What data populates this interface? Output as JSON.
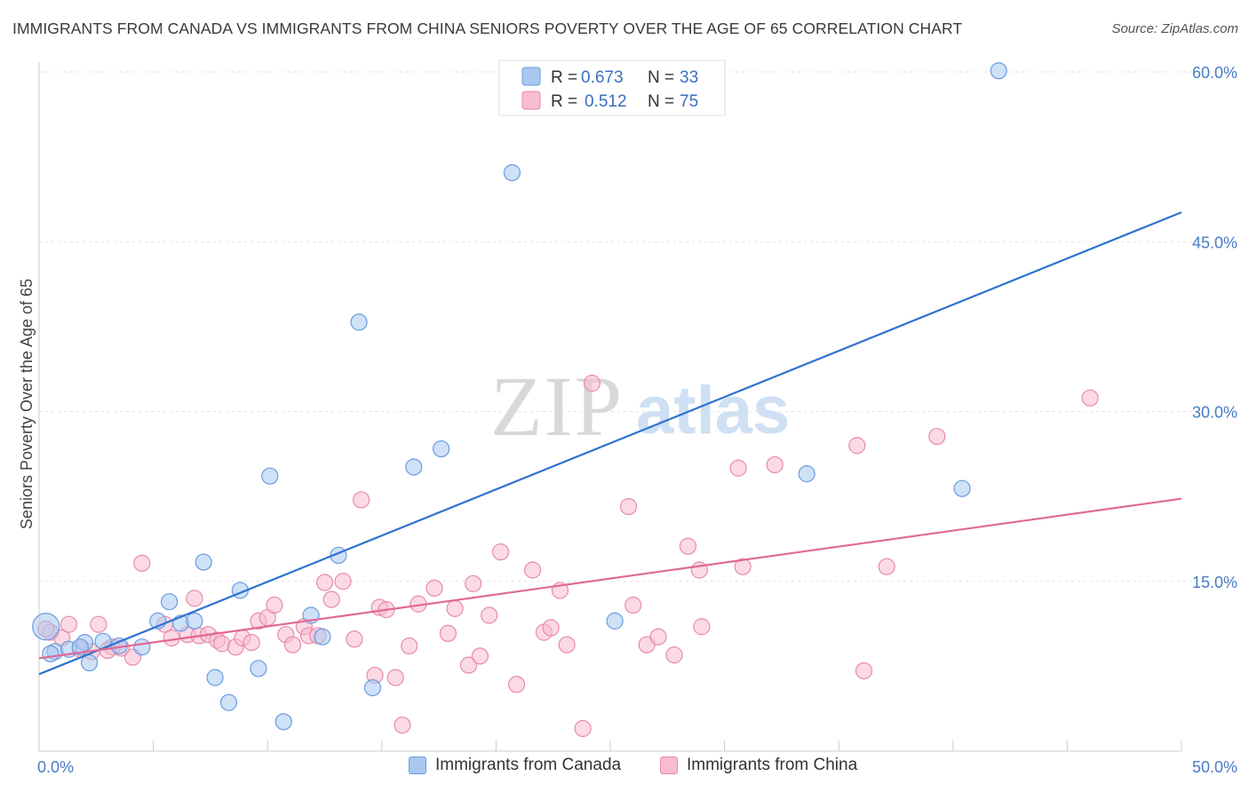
{
  "chart_data": {
    "type": "scatter",
    "title": "IMMIGRANTS FROM CANADA VS IMMIGRANTS FROM CHINA SENIORS POVERTY OVER THE AGE OF 65 CORRELATION CHART",
    "source": "Source: ZipAtlas.com",
    "xlabel": "",
    "ylabel": "Seniors Poverty Over the Age of 65",
    "xlim": [
      0,
      50
    ],
    "ylim": [
      0,
      60
    ],
    "x_tick_labels": [
      "0.0%",
      "50.0%"
    ],
    "y_ticks": [
      15,
      30,
      45,
      60
    ],
    "y_tick_labels": [
      "15.0%",
      "30.0%",
      "45.0%",
      "60.0%"
    ],
    "watermark": "ZIPatlas",
    "legend": {
      "r_label": "R =",
      "n_label": "N =",
      "entries": [
        {
          "name": "Immigrants from Canada",
          "r": "0.673",
          "n": "33",
          "color": "#a8c8f0",
          "stroke": "#6a9be0"
        },
        {
          "name": "Immigrants from China",
          "r": "0.512",
          "n": "75",
          "color": "#f8bcd0",
          "stroke": "#e88aaa"
        }
      ]
    },
    "series": [
      {
        "name": "Immigrants from Canada",
        "color": "#a8c8f0",
        "stroke": "#6a9be0",
        "trend": {
          "color": "#2f72d0",
          "x": [
            0,
            50
          ],
          "y": [
            6.8,
            47.6
          ]
        },
        "points": [
          [
            0.3,
            11.0
          ],
          [
            0.7,
            8.8
          ],
          [
            1.3,
            9.0
          ],
          [
            2.0,
            9.6
          ],
          [
            2.2,
            7.8
          ],
          [
            2.8,
            9.7
          ],
          [
            3.5,
            9.3
          ],
          [
            5.7,
            13.2
          ],
          [
            5.2,
            11.5
          ],
          [
            6.2,
            11.3
          ],
          [
            6.8,
            11.5
          ],
          [
            7.2,
            16.7
          ],
          [
            7.7,
            6.5
          ],
          [
            8.3,
            4.3
          ],
          [
            8.8,
            14.2
          ],
          [
            9.6,
            7.3
          ],
          [
            10.1,
            24.3
          ],
          [
            10.7,
            2.6
          ],
          [
            11.9,
            12.0
          ],
          [
            12.4,
            10.1
          ],
          [
            13.1,
            17.3
          ],
          [
            14.0,
            37.9
          ],
          [
            14.6,
            5.6
          ],
          [
            16.4,
            25.1
          ],
          [
            17.6,
            26.7
          ],
          [
            20.7,
            51.1
          ],
          [
            25.2,
            11.5
          ],
          [
            33.6,
            24.5
          ],
          [
            40.4,
            23.2
          ],
          [
            42.0,
            60.1
          ],
          [
            0.5,
            8.6
          ],
          [
            4.5,
            9.2
          ],
          [
            1.8,
            9.2
          ]
        ]
      },
      {
        "name": "Immigrants from China",
        "color": "#f8bcd0",
        "stroke": "#e88aaa",
        "trend": {
          "color": "#e06895",
          "x": [
            0,
            50
          ],
          "y": [
            8.2,
            22.3
          ]
        },
        "points": [
          [
            0.5,
            10.5
          ],
          [
            1.0,
            10.0
          ],
          [
            1.3,
            11.2
          ],
          [
            1.8,
            9.0
          ],
          [
            2.3,
            8.8
          ],
          [
            2.6,
            11.2
          ],
          [
            3.2,
            9.2
          ],
          [
            3.6,
            9.1
          ],
          [
            4.1,
            8.3
          ],
          [
            4.5,
            16.6
          ],
          [
            5.5,
            11.2
          ],
          [
            5.8,
            10.0
          ],
          [
            6.5,
            10.3
          ],
          [
            6.8,
            13.5
          ],
          [
            7.0,
            10.2
          ],
          [
            7.4,
            10.3
          ],
          [
            7.8,
            9.8
          ],
          [
            8.0,
            9.5
          ],
          [
            8.6,
            9.2
          ],
          [
            8.9,
            10.0
          ],
          [
            9.3,
            9.6
          ],
          [
            9.6,
            11.5
          ],
          [
            10.0,
            11.8
          ],
          [
            10.3,
            12.9
          ],
          [
            10.8,
            10.3
          ],
          [
            11.1,
            9.4
          ],
          [
            11.6,
            11.0
          ],
          [
            11.8,
            10.2
          ],
          [
            12.2,
            10.2
          ],
          [
            12.5,
            14.9
          ],
          [
            12.8,
            13.4
          ],
          [
            13.3,
            15.0
          ],
          [
            13.8,
            9.9
          ],
          [
            14.1,
            22.2
          ],
          [
            14.7,
            6.7
          ],
          [
            14.9,
            12.7
          ],
          [
            15.2,
            12.5
          ],
          [
            15.6,
            6.5
          ],
          [
            15.9,
            2.3
          ],
          [
            16.2,
            9.3
          ],
          [
            16.6,
            13.0
          ],
          [
            17.3,
            14.4
          ],
          [
            17.9,
            10.4
          ],
          [
            18.2,
            12.6
          ],
          [
            18.8,
            7.6
          ],
          [
            19.0,
            14.8
          ],
          [
            19.3,
            8.4
          ],
          [
            19.7,
            12.0
          ],
          [
            20.2,
            17.6
          ],
          [
            20.9,
            5.9
          ],
          [
            21.6,
            16.0
          ],
          [
            22.1,
            10.5
          ],
          [
            22.4,
            10.9
          ],
          [
            22.8,
            14.2
          ],
          [
            23.1,
            9.4
          ],
          [
            23.8,
            2.0
          ],
          [
            24.2,
            32.5
          ],
          [
            25.8,
            21.6
          ],
          [
            26.0,
            12.9
          ],
          [
            26.6,
            9.4
          ],
          [
            27.1,
            10.1
          ],
          [
            27.8,
            8.5
          ],
          [
            28.4,
            18.1
          ],
          [
            28.9,
            16.0
          ],
          [
            29.0,
            11.0
          ],
          [
            30.6,
            25.0
          ],
          [
            30.8,
            16.3
          ],
          [
            32.2,
            25.3
          ],
          [
            35.8,
            27.0
          ],
          [
            36.1,
            7.1
          ],
          [
            37.1,
            16.3
          ],
          [
            39.3,
            27.8
          ],
          [
            46.0,
            31.2
          ],
          [
            0.3,
            10.8
          ],
          [
            3.0,
            8.9
          ]
        ]
      }
    ]
  }
}
